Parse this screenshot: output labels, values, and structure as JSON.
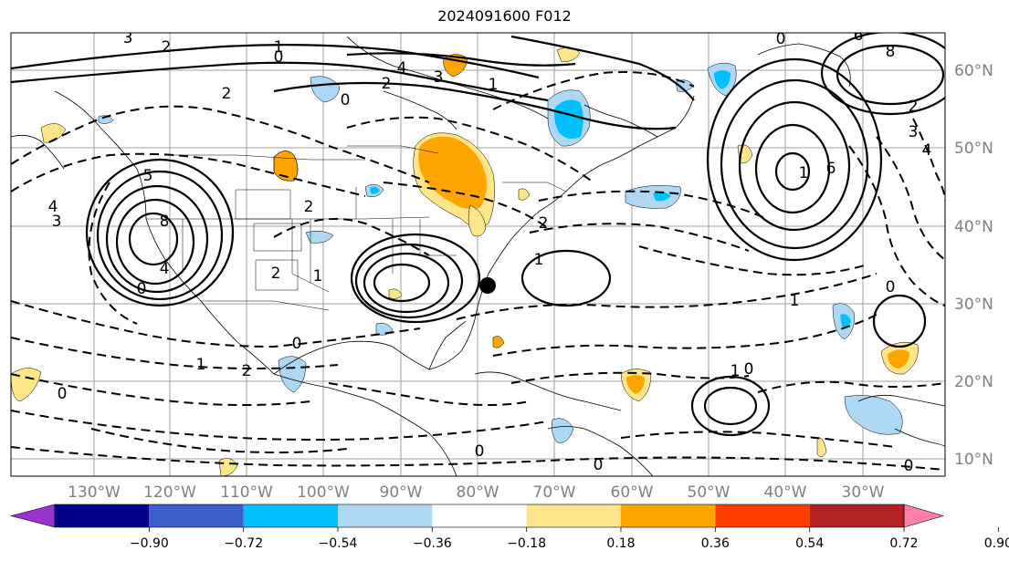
{
  "title": "2024091600 F012",
  "map": {
    "lon_labels": [
      "130°W",
      "120°W",
      "110°W",
      "100°W",
      "90°W",
      "80°W",
      "70°W",
      "60°W",
      "50°W",
      "40°W",
      "30°W"
    ],
    "lat_labels": [
      "60°N",
      "50°N",
      "40°N",
      "30°N",
      "20°N",
      "10°N"
    ],
    "gridlines": true,
    "marker": "filled black circle near US southeast coast"
  },
  "colorbar": {
    "tick_labels": [
      "−0.90",
      "−0.72",
      "−0.54",
      "−0.36",
      "−0.18",
      "0.18",
      "0.36",
      "0.54",
      "0.72",
      "0.90"
    ],
    "colors": [
      "#9a32cd",
      "#00008b",
      "#3a5fcd",
      "#00bfff",
      "#add8f5",
      "#ffffff",
      "#fde68a",
      "#ffa500",
      "#ff3d00",
      "#b22222",
      "#ff7fa8"
    ],
    "extend": "both"
  },
  "contour_labels": [
    {
      "t": "3"
    },
    {
      "t": "2"
    },
    {
      "t": "1"
    },
    {
      "t": "0"
    },
    {
      "t": "4"
    },
    {
      "t": "3"
    },
    {
      "t": "2"
    },
    {
      "t": "1"
    },
    {
      "t": "0"
    },
    {
      "t": "6"
    },
    {
      "t": "8"
    },
    {
      "t": "2"
    },
    {
      "t": "4"
    },
    {
      "t": "3"
    },
    {
      "t": "5"
    },
    {
      "t": "4"
    },
    {
      "t": "8"
    },
    {
      "t": "6"
    },
    {
      "t": "2"
    },
    {
      "t": "1"
    },
    {
      "t": "2"
    },
    {
      "t": "0"
    },
    {
      "t": "1"
    },
    {
      "t": "2"
    },
    {
      "t": "1"
    },
    {
      "t": "2"
    },
    {
      "t": "0"
    },
    {
      "t": "0"
    },
    {
      "t": "0"
    },
    {
      "t": "1"
    },
    {
      "t": "0"
    },
    {
      "t": "0"
    },
    {
      "t": "1"
    },
    {
      "t": "1"
    },
    {
      "t": "0"
    },
    {
      "t": "3"
    },
    {
      "t": "4"
    },
    {
      "t": "2"
    },
    {
      "t": "0"
    },
    {
      "t": "0"
    }
  ]
}
